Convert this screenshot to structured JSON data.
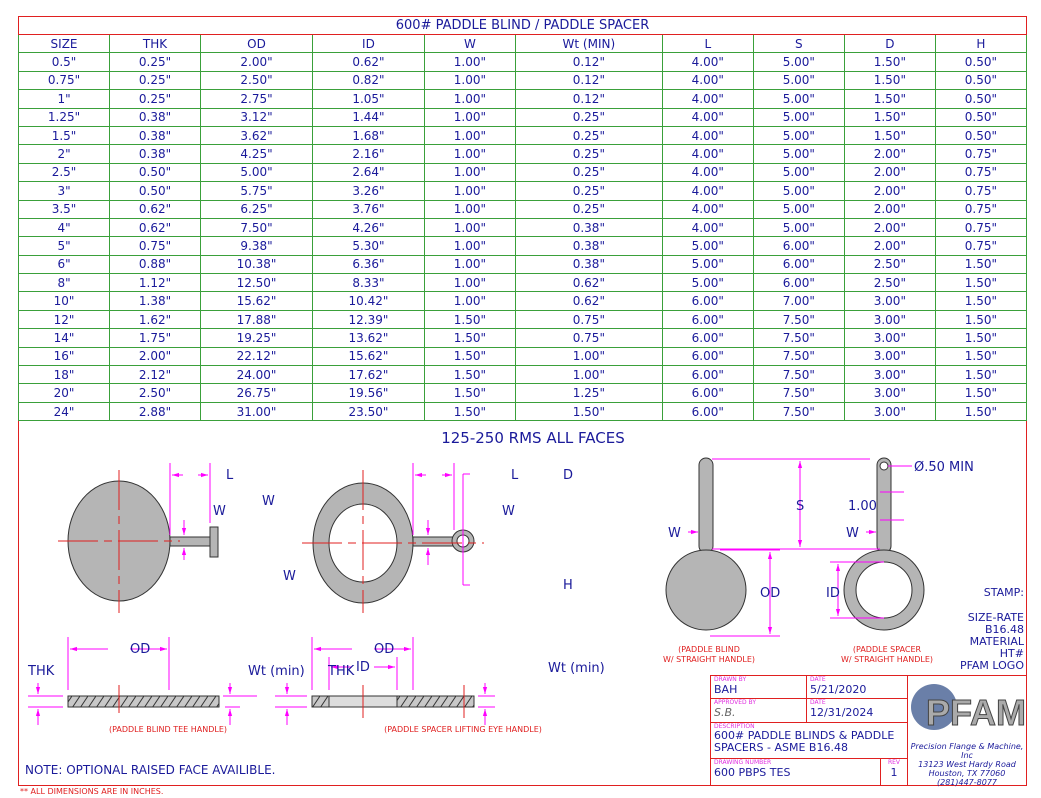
{
  "table": {
    "title": "600# PADDLE BLIND / PADDLE SPACER",
    "headers": [
      "SIZE",
      "THK",
      "OD",
      "ID",
      "W",
      "Wt (MIN)",
      "L",
      "S",
      "D",
      "H"
    ],
    "rows": [
      [
        "0.5\"",
        "0.25\"",
        "2.00\"",
        "0.62\"",
        "1.00\"",
        "0.12\"",
        "4.00\"",
        "5.00\"",
        "1.50\"",
        "0.50\""
      ],
      [
        "0.75\"",
        "0.25\"",
        "2.50\"",
        "0.82\"",
        "1.00\"",
        "0.12\"",
        "4.00\"",
        "5.00\"",
        "1.50\"",
        "0.50\""
      ],
      [
        "1\"",
        "0.25\"",
        "2.75\"",
        "1.05\"",
        "1.00\"",
        "0.12\"",
        "4.00\"",
        "5.00\"",
        "1.50\"",
        "0.50\""
      ],
      [
        "1.25\"",
        "0.38\"",
        "3.12\"",
        "1.44\"",
        "1.00\"",
        "0.25\"",
        "4.00\"",
        "5.00\"",
        "1.50\"",
        "0.50\""
      ],
      [
        "1.5\"",
        "0.38\"",
        "3.62\"",
        "1.68\"",
        "1.00\"",
        "0.25\"",
        "4.00\"",
        "5.00\"",
        "1.50\"",
        "0.50\""
      ],
      [
        "2\"",
        "0.38\"",
        "4.25\"",
        "2.16\"",
        "1.00\"",
        "0.25\"",
        "4.00\"",
        "5.00\"",
        "2.00\"",
        "0.75\""
      ],
      [
        "2.5\"",
        "0.50\"",
        "5.00\"",
        "2.64\"",
        "1.00\"",
        "0.25\"",
        "4.00\"",
        "5.00\"",
        "2.00\"",
        "0.75\""
      ],
      [
        "3\"",
        "0.50\"",
        "5.75\"",
        "3.26\"",
        "1.00\"",
        "0.25\"",
        "4.00\"",
        "5.00\"",
        "2.00\"",
        "0.75\""
      ],
      [
        "3.5\"",
        "0.62\"",
        "6.25\"",
        "3.76\"",
        "1.00\"",
        "0.25\"",
        "4.00\"",
        "5.00\"",
        "2.00\"",
        "0.75\""
      ],
      [
        "4\"",
        "0.62\"",
        "7.50\"",
        "4.26\"",
        "1.00\"",
        "0.38\"",
        "4.00\"",
        "5.00\"",
        "2.00\"",
        "0.75\""
      ],
      [
        "5\"",
        "0.75\"",
        "9.38\"",
        "5.30\"",
        "1.00\"",
        "0.38\"",
        "5.00\"",
        "6.00\"",
        "2.00\"",
        "0.75\""
      ],
      [
        "6\"",
        "0.88\"",
        "10.38\"",
        "6.36\"",
        "1.00\"",
        "0.38\"",
        "5.00\"",
        "6.00\"",
        "2.50\"",
        "1.50\""
      ],
      [
        "8\"",
        "1.12\"",
        "12.50\"",
        "8.33\"",
        "1.00\"",
        "0.62\"",
        "5.00\"",
        "6.00\"",
        "2.50\"",
        "1.50\""
      ],
      [
        "10\"",
        "1.38\"",
        "15.62\"",
        "10.42\"",
        "1.00\"",
        "0.62\"",
        "6.00\"",
        "7.00\"",
        "3.00\"",
        "1.50\""
      ],
      [
        "12\"",
        "1.62\"",
        "17.88\"",
        "12.39\"",
        "1.50\"",
        "0.75\"",
        "6.00\"",
        "7.50\"",
        "3.00\"",
        "1.50\""
      ],
      [
        "14\"",
        "1.75\"",
        "19.25\"",
        "13.62\"",
        "1.50\"",
        "0.75\"",
        "6.00\"",
        "7.50\"",
        "3.00\"",
        "1.50\""
      ],
      [
        "16\"",
        "2.00\"",
        "22.12\"",
        "15.62\"",
        "1.50\"",
        "1.00\"",
        "6.00\"",
        "7.50\"",
        "3.00\"",
        "1.50\""
      ],
      [
        "18\"",
        "2.12\"",
        "24.00\"",
        "17.62\"",
        "1.50\"",
        "1.00\"",
        "6.00\"",
        "7.50\"",
        "3.00\"",
        "1.50\""
      ],
      [
        "20\"",
        "2.50\"",
        "26.75\"",
        "19.56\"",
        "1.50\"",
        "1.25\"",
        "6.00\"",
        "7.50\"",
        "3.00\"",
        "1.50\""
      ],
      [
        "24\"",
        "2.88\"",
        "31.00\"",
        "23.50\"",
        "1.50\"",
        "1.50\"",
        "6.00\"",
        "7.50\"",
        "3.00\"",
        "1.50\""
      ]
    ]
  },
  "drawing": {
    "finish": "125-250 RMS ALL FACES",
    "L": "L",
    "W": "W",
    "D": "D",
    "H": "H",
    "OD": "OD",
    "ID": "ID",
    "THK": "THK",
    "Wt": "Wt (min)",
    "S": "S",
    "one": "1.00",
    "hole": "Ø.50 MIN",
    "cap_blind_tee": "(PADDLE BLIND TEE HANDLE)",
    "cap_spacer_eye": "(PADDLE SPACER LIFTING EYE HANDLE)",
    "cap_blind_straight_1": "(PADDLE BLIND",
    "cap_blind_straight_2": "W/ STRAIGHT HANDLE)",
    "cap_spacer_straight_1": "(PADDLE SPACER",
    "cap_spacer_straight_2": "W/ STRAIGHT HANDLE)"
  },
  "stamp": [
    "STAMP:",
    "SIZE-RATE",
    "B16.48",
    "MATERIAL",
    "HT#",
    "PFAM LOGO"
  ],
  "note": "NOTE: OPTIONAL RAISED FACE AVAILIBLE.",
  "footnote": "** ALL DIMENSIONS ARE IN INCHES.",
  "title_block": {
    "drawn_by_label": "DRAWN BY",
    "drawn_by": "BAH",
    "date_label": "DATE",
    "date1": "5/21/2020",
    "approved_label": "APPROVED BY",
    "approved": "S.B.",
    "date2": "12/31/2024",
    "desc_label": "DESCRIPTION",
    "desc1": "600# PADDLE BLINDS & PADDLE",
    "desc2": "SPACERS - ASME B16.48",
    "dwg_label": "DRAWING NUMBER",
    "dwg": "600 PBPS TES",
    "rev_label": "REV",
    "rev": "1",
    "logo": "PFAM",
    "company": "Precision Flange & Machine, Inc",
    "addr1": "13123 West Hardy Road",
    "addr2": "Houston, TX 77060",
    "phone": "(281)447-8077"
  },
  "colors": {
    "dimension": "#ff00ff",
    "centerline": "#e02020",
    "text": "#1a1a9a",
    "grid": "#3aa03a"
  }
}
